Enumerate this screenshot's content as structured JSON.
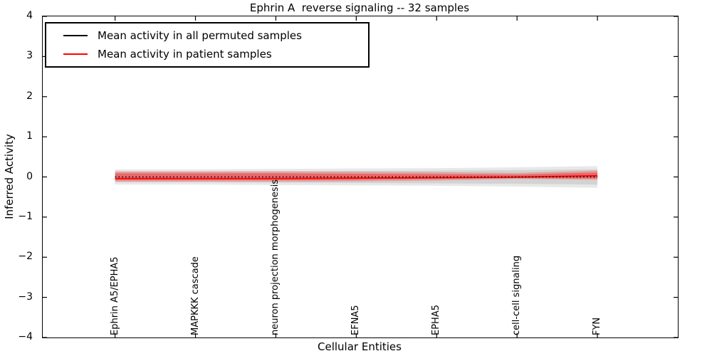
{
  "chart_data": {
    "type": "line",
    "title": "Ephrin A  reverse signaling -- 32 samples",
    "xlabel": "Cellular Entities",
    "ylabel": "Inferred Activity",
    "ylim": [
      -4,
      4
    ],
    "grid": false,
    "legend_position": "upper left",
    "y_ticks": [
      {
        "label": "4",
        "value": 4
      },
      {
        "label": "3",
        "value": 3
      },
      {
        "label": "2",
        "value": 2
      },
      {
        "label": "1",
        "value": 1
      },
      {
        "label": "0",
        "value": 0
      },
      {
        "label": "−1",
        "value": -1
      },
      {
        "label": "−2",
        "value": -2
      },
      {
        "label": "−3",
        "value": -3
      },
      {
        "label": "−4",
        "value": -4
      }
    ],
    "categories": [
      "Ephrin A5/EPHA5",
      "MAPKKK cascade",
      "neuron projection morphogenesis",
      "EFNA5",
      "EPHA5",
      "cell-cell signaling",
      "FYN"
    ],
    "series": [
      {
        "name": "Mean activity in all permuted samples",
        "color": "#000000",
        "line_style": "dotted",
        "values": [
          0.0,
          0.0,
          0.0,
          0.0,
          0.0,
          0.0,
          0.0
        ]
      },
      {
        "name": "Mean activity in patient samples",
        "color": "#ff0000",
        "line_style": "solid",
        "values": [
          -0.04,
          -0.04,
          -0.04,
          -0.03,
          -0.02,
          -0.005,
          0.03
        ]
      }
    ],
    "bands": [
      {
        "name": "permuted-samples-outer-band",
        "color": "#000000",
        "opacity": 0.09,
        "upper": [
          0.19,
          0.19,
          0.2,
          0.21,
          0.22,
          0.24,
          0.27
        ],
        "lower": [
          -0.19,
          -0.19,
          -0.2,
          -0.21,
          -0.22,
          -0.24,
          -0.27
        ]
      },
      {
        "name": "permuted-samples-inner-band",
        "color": "#000000",
        "opacity": 0.09,
        "upper": [
          0.13,
          0.13,
          0.14,
          0.15,
          0.16,
          0.17,
          0.19
        ],
        "lower": [
          -0.13,
          -0.13,
          -0.14,
          -0.15,
          -0.16,
          -0.17,
          -0.19
        ]
      },
      {
        "name": "patient-samples-outer-band",
        "color": "#ff0000",
        "opacity": 0.22,
        "upper": [
          0.14,
          0.14,
          0.14,
          0.13,
          0.12,
          0.1,
          0.16
        ],
        "lower": [
          -0.12,
          -0.12,
          -0.12,
          -0.11,
          -0.09,
          -0.05,
          -0.07
        ]
      },
      {
        "name": "patient-samples-inner-band",
        "color": "#ff0000",
        "opacity": 0.36,
        "upper": [
          0.09,
          0.09,
          0.09,
          0.08,
          0.07,
          0.06,
          0.11
        ],
        "lower": [
          -0.08,
          -0.08,
          -0.08,
          -0.07,
          -0.05,
          -0.03,
          -0.04
        ]
      }
    ]
  }
}
